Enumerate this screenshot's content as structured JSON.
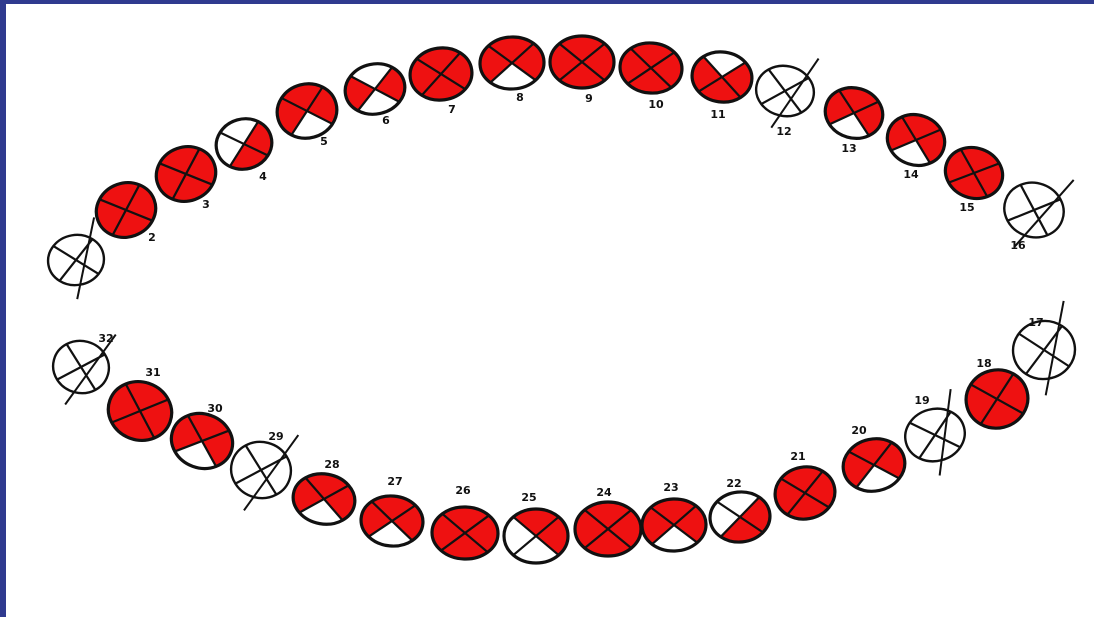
{
  "chart": {
    "fill_color": "#ee1111",
    "empty_color": "#ffffff",
    "outline_color": "#111111",
    "background_color": "#2f3a8f",
    "upper_arch": [
      {
        "label": "",
        "surfaces": [
          0,
          0,
          0,
          0
        ],
        "missing": true
      },
      {
        "label": "2",
        "surfaces": [
          1,
          1,
          1,
          1
        ],
        "missing": false
      },
      {
        "label": "3",
        "surfaces": [
          1,
          1,
          1,
          1
        ],
        "missing": false
      },
      {
        "label": "4",
        "surfaces": [
          0,
          1,
          1,
          0
        ],
        "missing": false
      },
      {
        "label": "5",
        "surfaces": [
          1,
          1,
          0,
          1
        ],
        "missing": false
      },
      {
        "label": "6",
        "surfaces": [
          0,
          1,
          0,
          1
        ],
        "missing": false
      },
      {
        "label": "7",
        "surfaces": [
          1,
          1,
          1,
          1
        ],
        "missing": false
      },
      {
        "label": "8",
        "surfaces": [
          1,
          1,
          0,
          1
        ],
        "missing": false
      },
      {
        "label": "9",
        "surfaces": [
          1,
          1,
          1,
          1
        ],
        "missing": false
      },
      {
        "label": "10",
        "surfaces": [
          1,
          1,
          1,
          1
        ],
        "missing": false
      },
      {
        "label": "11",
        "surfaces": [
          0,
          1,
          1,
          1
        ],
        "missing": false
      },
      {
        "label": "12",
        "surfaces": [
          0,
          0,
          0,
          0
        ],
        "missing": true
      },
      {
        "label": "13",
        "surfaces": [
          1,
          1,
          0,
          1
        ],
        "missing": false
      },
      {
        "label": "14",
        "surfaces": [
          1,
          1,
          0,
          1
        ],
        "missing": false
      },
      {
        "label": "15",
        "surfaces": [
          1,
          1,
          1,
          1
        ],
        "missing": false
      },
      {
        "label": "16",
        "surfaces": [
          0,
          0,
          0,
          0
        ],
        "missing": true
      }
    ],
    "lower_arch": [
      {
        "label": "17",
        "surfaces": [
          0,
          0,
          0,
          0
        ],
        "missing": true
      },
      {
        "label": "18",
        "surfaces": [
          1,
          1,
          1,
          1
        ],
        "missing": false
      },
      {
        "label": "19",
        "surfaces": [
          0,
          0,
          0,
          0
        ],
        "missing": true
      },
      {
        "label": "20",
        "surfaces": [
          1,
          1,
          0,
          1
        ],
        "missing": false
      },
      {
        "label": "21",
        "surfaces": [
          1,
          1,
          1,
          1
        ],
        "missing": false
      },
      {
        "label": "22",
        "surfaces": [
          0,
          1,
          1,
          0
        ],
        "missing": false
      },
      {
        "label": "23",
        "surfaces": [
          1,
          1,
          0,
          1
        ],
        "missing": false
      },
      {
        "label": "24",
        "surfaces": [
          1,
          1,
          1,
          1
        ],
        "missing": false
      },
      {
        "label": "25",
        "surfaces": [
          1,
          1,
          0,
          0
        ],
        "missing": false
      },
      {
        "label": "26",
        "surfaces": [
          1,
          1,
          1,
          1
        ],
        "missing": false
      },
      {
        "label": "27",
        "surfaces": [
          1,
          1,
          0,
          1
        ],
        "missing": false
      },
      {
        "label": "28",
        "surfaces": [
          1,
          1,
          0,
          1
        ],
        "missing": false
      },
      {
        "label": "29",
        "surfaces": [
          0,
          0,
          0,
          0
        ],
        "missing": true
      },
      {
        "label": "30",
        "surfaces": [
          1,
          1,
          0,
          1
        ],
        "missing": false
      },
      {
        "label": "31",
        "surfaces": [
          1,
          1,
          1,
          1
        ],
        "missing": false
      },
      {
        "label": "32",
        "surfaces": [
          0,
          0,
          0,
          0
        ],
        "missing": true
      }
    ]
  }
}
